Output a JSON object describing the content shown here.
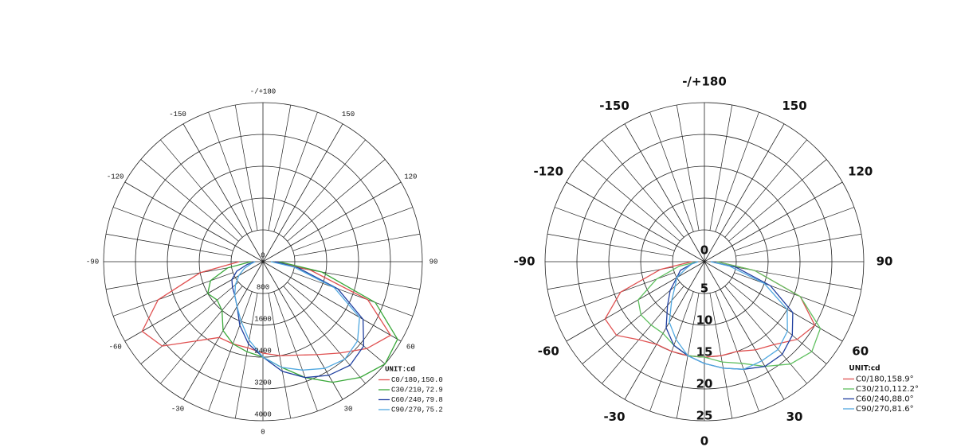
{
  "chart_data": [
    {
      "type": "polar",
      "legend_title": "UNIT:cd",
      "xlim": [
        -180,
        180
      ],
      "xticks": [
        {
          "value": 180,
          "label": "-/+180"
        },
        150,
        120,
        90,
        60,
        30,
        0,
        -30,
        -60,
        -90,
        -120,
        -150
      ],
      "ylim": [
        0,
        4000
      ],
      "yticks": [
        0,
        800,
        1600,
        2400,
        3200,
        4000
      ],
      "x": [
        -90,
        -80,
        -70,
        -60,
        -50,
        -40,
        -30,
        -20,
        -10,
        0,
        10,
        20,
        30,
        40,
        50,
        60,
        70,
        80,
        90
      ],
      "series": [
        {
          "name": "C0/180,150.0",
          "color": "#e05050",
          "values": [
            600,
            1600,
            2800,
            3500,
            3300,
            2600,
            2200,
            2200,
            2200,
            2300,
            2400,
            2500,
            2700,
            3000,
            3400,
            3700,
            2800,
            1200,
            300
          ]
        },
        {
          "name": "C30/210,72.9",
          "color": "#3aa83a",
          "values": [
            300,
            900,
            1400,
            1600,
            1500,
            1600,
            2000,
            2200,
            2300,
            2400,
            2700,
            3100,
            3500,
            3800,
            4000,
            3900,
            3000,
            1500,
            400
          ]
        },
        {
          "name": "C60/240,79.8",
          "color": "#2040a0",
          "values": [
            200,
            400,
            700,
            900,
            1000,
            1100,
            1300,
            1700,
            2100,
            2400,
            2800,
            3100,
            3300,
            3400,
            3300,
            2900,
            2000,
            900,
            300
          ]
        },
        {
          "name": "C90/270,75.2",
          "color": "#50a8e0",
          "values": [
            200,
            300,
            500,
            700,
            900,
            1100,
            1300,
            1600,
            2000,
            2400,
            2700,
            2900,
            3100,
            3200,
            3100,
            2800,
            1900,
            800,
            200
          ]
        }
      ]
    },
    {
      "type": "polar",
      "legend_title": "UNIT:cd",
      "xlim": [
        -180,
        180
      ],
      "xticks": [
        {
          "value": 180,
          "label": "-/+180"
        },
        150,
        120,
        90,
        60,
        30,
        0,
        -30,
        -60,
        -90,
        -120,
        -150
      ],
      "ylim": [
        0,
        25
      ],
      "yticks": [
        0,
        5,
        10,
        15,
        20,
        25
      ],
      "x": [
        -90,
        -80,
        -70,
        -60,
        -50,
        -40,
        -30,
        -20,
        -10,
        0,
        10,
        20,
        30,
        40,
        50,
        60,
        70,
        80,
        90
      ],
      "series": [
        {
          "name": "C0/180,158.9°",
          "color": "#e05050",
          "values": [
            2,
            7,
            14,
            18,
            18,
            16,
            15,
            15,
            15,
            15,
            15,
            15,
            16,
            17,
            19,
            20,
            16,
            8,
            2
          ]
        },
        {
          "name": "C30/210,112.2°",
          "color": "#60c060",
          "values": [
            1,
            4,
            8,
            12,
            13,
            13,
            13,
            14,
            15,
            15,
            16,
            17,
            19,
            21,
            22,
            21,
            16,
            8,
            2
          ]
        },
        {
          "name": "C60/240,88.0°",
          "color": "#2040a0",
          "values": [
            1,
            2,
            4,
            5,
            7,
            9,
            12,
            14,
            15,
            16,
            17,
            18,
            19,
            19,
            18,
            16,
            11,
            5,
            1
          ]
        },
        {
          "name": "C90/270,81.6°",
          "color": "#50a8e0",
          "values": [
            1,
            2,
            3,
            5,
            6,
            8,
            11,
            13,
            15,
            16,
            17,
            18,
            18,
            18,
            17,
            15,
            10,
            4,
            1
          ]
        }
      ]
    }
  ]
}
